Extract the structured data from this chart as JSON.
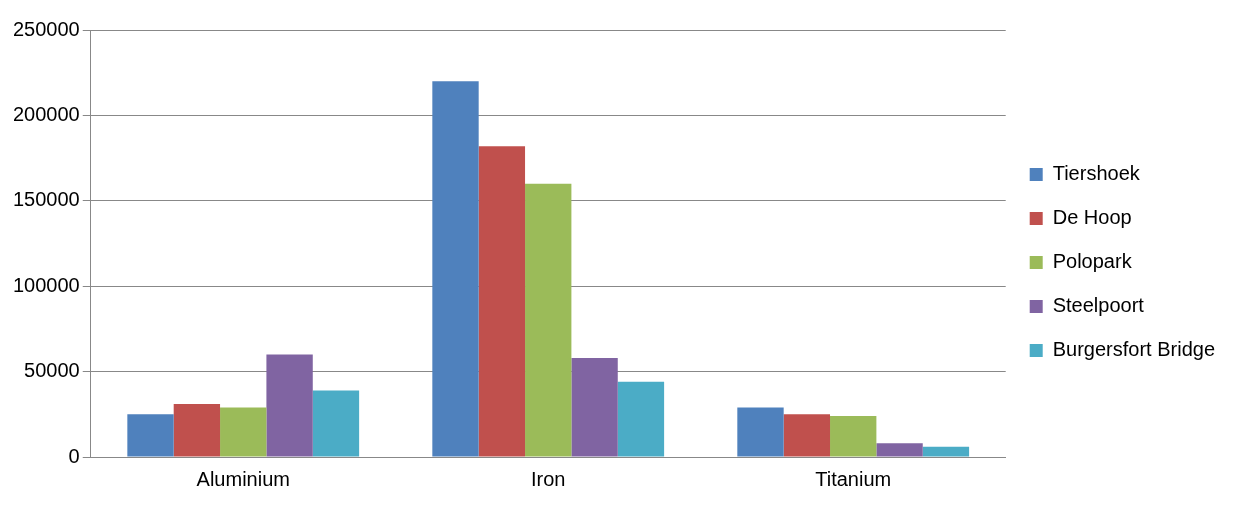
{
  "chart_data": {
    "type": "bar",
    "categories": [
      "Aluminium",
      "Iron",
      "Titanium"
    ],
    "series": [
      {
        "name": "Tiershoek",
        "color": "#4f81bd",
        "values": [
          25000,
          220000,
          29000
        ]
      },
      {
        "name": "De Hoop",
        "color": "#c0504d",
        "values": [
          31000,
          182000,
          25000
        ]
      },
      {
        "name": "Polopark",
        "color": "#9bbb59",
        "values": [
          29000,
          160000,
          24000
        ]
      },
      {
        "name": "Steelpoort",
        "color": "#8064a2",
        "values": [
          60000,
          58000,
          8000
        ]
      },
      {
        "name": "Burgersfort Bridge",
        "color": "#4bacc6",
        "values": [
          39000,
          44000,
          6000
        ]
      }
    ],
    "ylim": [
      0,
      250000
    ],
    "yticks": [
      0,
      50000,
      100000,
      150000,
      200000,
      250000
    ],
    "grid": "y",
    "legend": "right"
  }
}
